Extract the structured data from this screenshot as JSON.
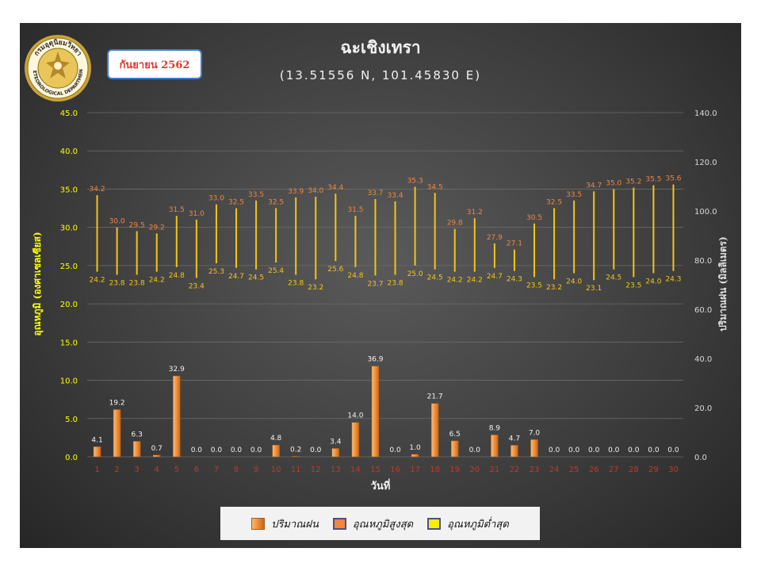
{
  "header": {
    "month_badge": "กันยายน 2562",
    "title": "ฉะเชิงเทรา",
    "subtitle": "(13.51556 N, 101.45830 E)"
  },
  "logo": {
    "icon": "meteorological-department-seal-icon",
    "text_top": "กรมอุตุนิยมวิทยา",
    "text_bottom": "METEOROLOGICAL DEPARTMENT"
  },
  "colors": {
    "rain_bar": "#f08c35",
    "max_temp_label": "#f0873a",
    "min_temp_label": "#f3c416",
    "temp_range_line": "#f3c416",
    "left_axis_labels": "#ffff00",
    "right_axis_labels": "#d9d9d9",
    "x_tick_labels": "#c0392b",
    "grid": "#6b6b6b"
  },
  "legend": {
    "items": [
      {
        "label": "ปริมาณฝน",
        "icon": "rain-bar-swatch-icon",
        "color": "#f08c35"
      },
      {
        "label": "อุณหภูมิสูงสุด",
        "icon": "max-temp-swatch-icon",
        "color": "#f0873a"
      },
      {
        "label": "อุณหภูมิต่ำสุด",
        "icon": "min-temp-swatch-icon",
        "color": "#f3f000"
      }
    ]
  },
  "chart_data": {
    "type": "bar",
    "xlabel": "วันที่",
    "ylabel_left": "อุณหภูมิ (องศาเซลเซียส)",
    "ylabel_right": "ปริมาณฝน (มิลลิเมตร)",
    "ylim_left": [
      0,
      45
    ],
    "ylim_right": [
      0,
      140
    ],
    "yticks_left": [
      "0.0",
      "5.0",
      "10.0",
      "15.0",
      "20.0",
      "25.0",
      "30.0",
      "35.0",
      "40.0",
      "45.0"
    ],
    "yticks_right": [
      "0.0",
      "20.0",
      "40.0",
      "60.0",
      "80.0",
      "100.0",
      "120.0",
      "140.0"
    ],
    "grid": true,
    "legend_position": "bottom",
    "categories": [
      "1",
      "2",
      "3",
      "4",
      "5",
      "6",
      "7",
      "8",
      "9",
      "10",
      "11",
      "12",
      "13",
      "14",
      "15",
      "16",
      "17",
      "18",
      "19",
      "20",
      "21",
      "22",
      "23",
      "24",
      "25",
      "26",
      "27",
      "28",
      "29",
      "30"
    ],
    "series": [
      {
        "name": "ปริมาณฝน",
        "kind": "bar",
        "axis": "right",
        "values": [
          4.1,
          19.2,
          6.3,
          0.7,
          32.9,
          0.0,
          0.0,
          0.0,
          0.0,
          4.8,
          0.2,
          0.0,
          3.4,
          14.0,
          36.9,
          0.0,
          1.0,
          21.7,
          6.5,
          0.0,
          8.9,
          4.7,
          7.0,
          0.0,
          0.0,
          0.0,
          0.0,
          0.0,
          0.0,
          0.0
        ]
      },
      {
        "name": "อุณหภูมิสูงสุด",
        "kind": "range-top",
        "axis": "left",
        "values": [
          34.2,
          30.0,
          29.5,
          29.2,
          31.5,
          31.0,
          33.0,
          32.5,
          33.5,
          32.5,
          33.9,
          34.0,
          34.4,
          31.5,
          33.7,
          33.4,
          35.3,
          34.5,
          29.8,
          31.2,
          27.9,
          27.1,
          30.5,
          32.5,
          33.5,
          34.7,
          35.0,
          35.2,
          35.5,
          35.6
        ]
      },
      {
        "name": "อุณหภูมิต่ำสุด",
        "kind": "range-bottom",
        "axis": "left",
        "values": [
          24.2,
          23.8,
          23.8,
          24.2,
          24.8,
          23.4,
          25.3,
          24.7,
          24.5,
          25.4,
          23.8,
          23.2,
          25.6,
          24.8,
          23.7,
          23.8,
          25.0,
          24.5,
          24.2,
          24.2,
          24.7,
          24.3,
          23.5,
          23.2,
          24.0,
          23.1,
          24.5,
          23.5,
          24.0,
          24.3
        ]
      }
    ]
  }
}
